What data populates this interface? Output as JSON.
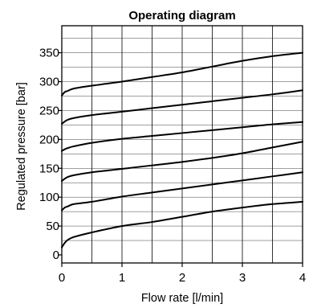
{
  "chart_data": {
    "type": "line",
    "title": "Operating diagram",
    "xlabel": "Flow rate [l/min]",
    "ylabel": "Regulated pressure [bar]",
    "xlim": [
      0,
      4
    ],
    "ylim": [
      0,
      400
    ],
    "x_ticks": [
      "0",
      "1",
      "2",
      "3",
      "4"
    ],
    "y_ticks": [
      "0",
      "50",
      "100",
      "150",
      "200",
      "250",
      "300",
      "350"
    ],
    "x_gridlines": [
      0.5,
      1,
      1.5,
      2,
      2.5,
      3,
      3.5
    ],
    "y_gridlines": [
      25,
      50,
      75,
      100,
      125,
      150,
      175,
      200,
      225,
      250,
      275,
      300,
      325,
      350,
      375
    ],
    "grid": true,
    "series": [
      {
        "x": [
          0,
          0.05,
          0.1,
          0.2,
          0.5,
          1,
          1.5,
          2,
          2.5,
          3,
          3.5,
          4
        ],
        "y": [
          13,
          21,
          26,
          31,
          39,
          50,
          57,
          66,
          75,
          82,
          88,
          92
        ]
      },
      {
        "x": [
          0,
          0.05,
          0.1,
          0.2,
          0.5,
          1,
          1.5,
          2,
          2.5,
          3,
          3.5,
          4
        ],
        "y": [
          77,
          82,
          84,
          88,
          92,
          101,
          108,
          115,
          122,
          129,
          136,
          143
        ]
      },
      {
        "x": [
          0,
          0.05,
          0.1,
          0.2,
          0.5,
          1,
          1.5,
          2,
          2.5,
          3,
          3.5,
          4
        ],
        "y": [
          128,
          132,
          135,
          138,
          143,
          149,
          155,
          161,
          168,
          176,
          186,
          196
        ]
      },
      {
        "x": [
          0,
          0.05,
          0.1,
          0.2,
          0.5,
          1,
          1.5,
          2,
          2.5,
          3,
          3.5,
          4
        ],
        "y": [
          180,
          183,
          185,
          188,
          194,
          201,
          206,
          211,
          216,
          221,
          226,
          230
        ]
      },
      {
        "x": [
          0,
          0.05,
          0.1,
          0.2,
          0.5,
          1,
          1.5,
          2,
          2.5,
          3,
          3.5,
          4
        ],
        "y": [
          227,
          231,
          234,
          237,
          242,
          248,
          254,
          260,
          266,
          272,
          278,
          285
        ]
      },
      {
        "x": [
          0,
          0.05,
          0.1,
          0.2,
          0.5,
          1,
          1.5,
          2,
          2.5,
          3,
          3.5,
          4
        ],
        "y": [
          276,
          282,
          284,
          288,
          293,
          300,
          308,
          316,
          326,
          336,
          344,
          350
        ]
      }
    ],
    "colors": {
      "line": "#000000",
      "grid": "#000000",
      "background": "#ffffff"
    }
  }
}
